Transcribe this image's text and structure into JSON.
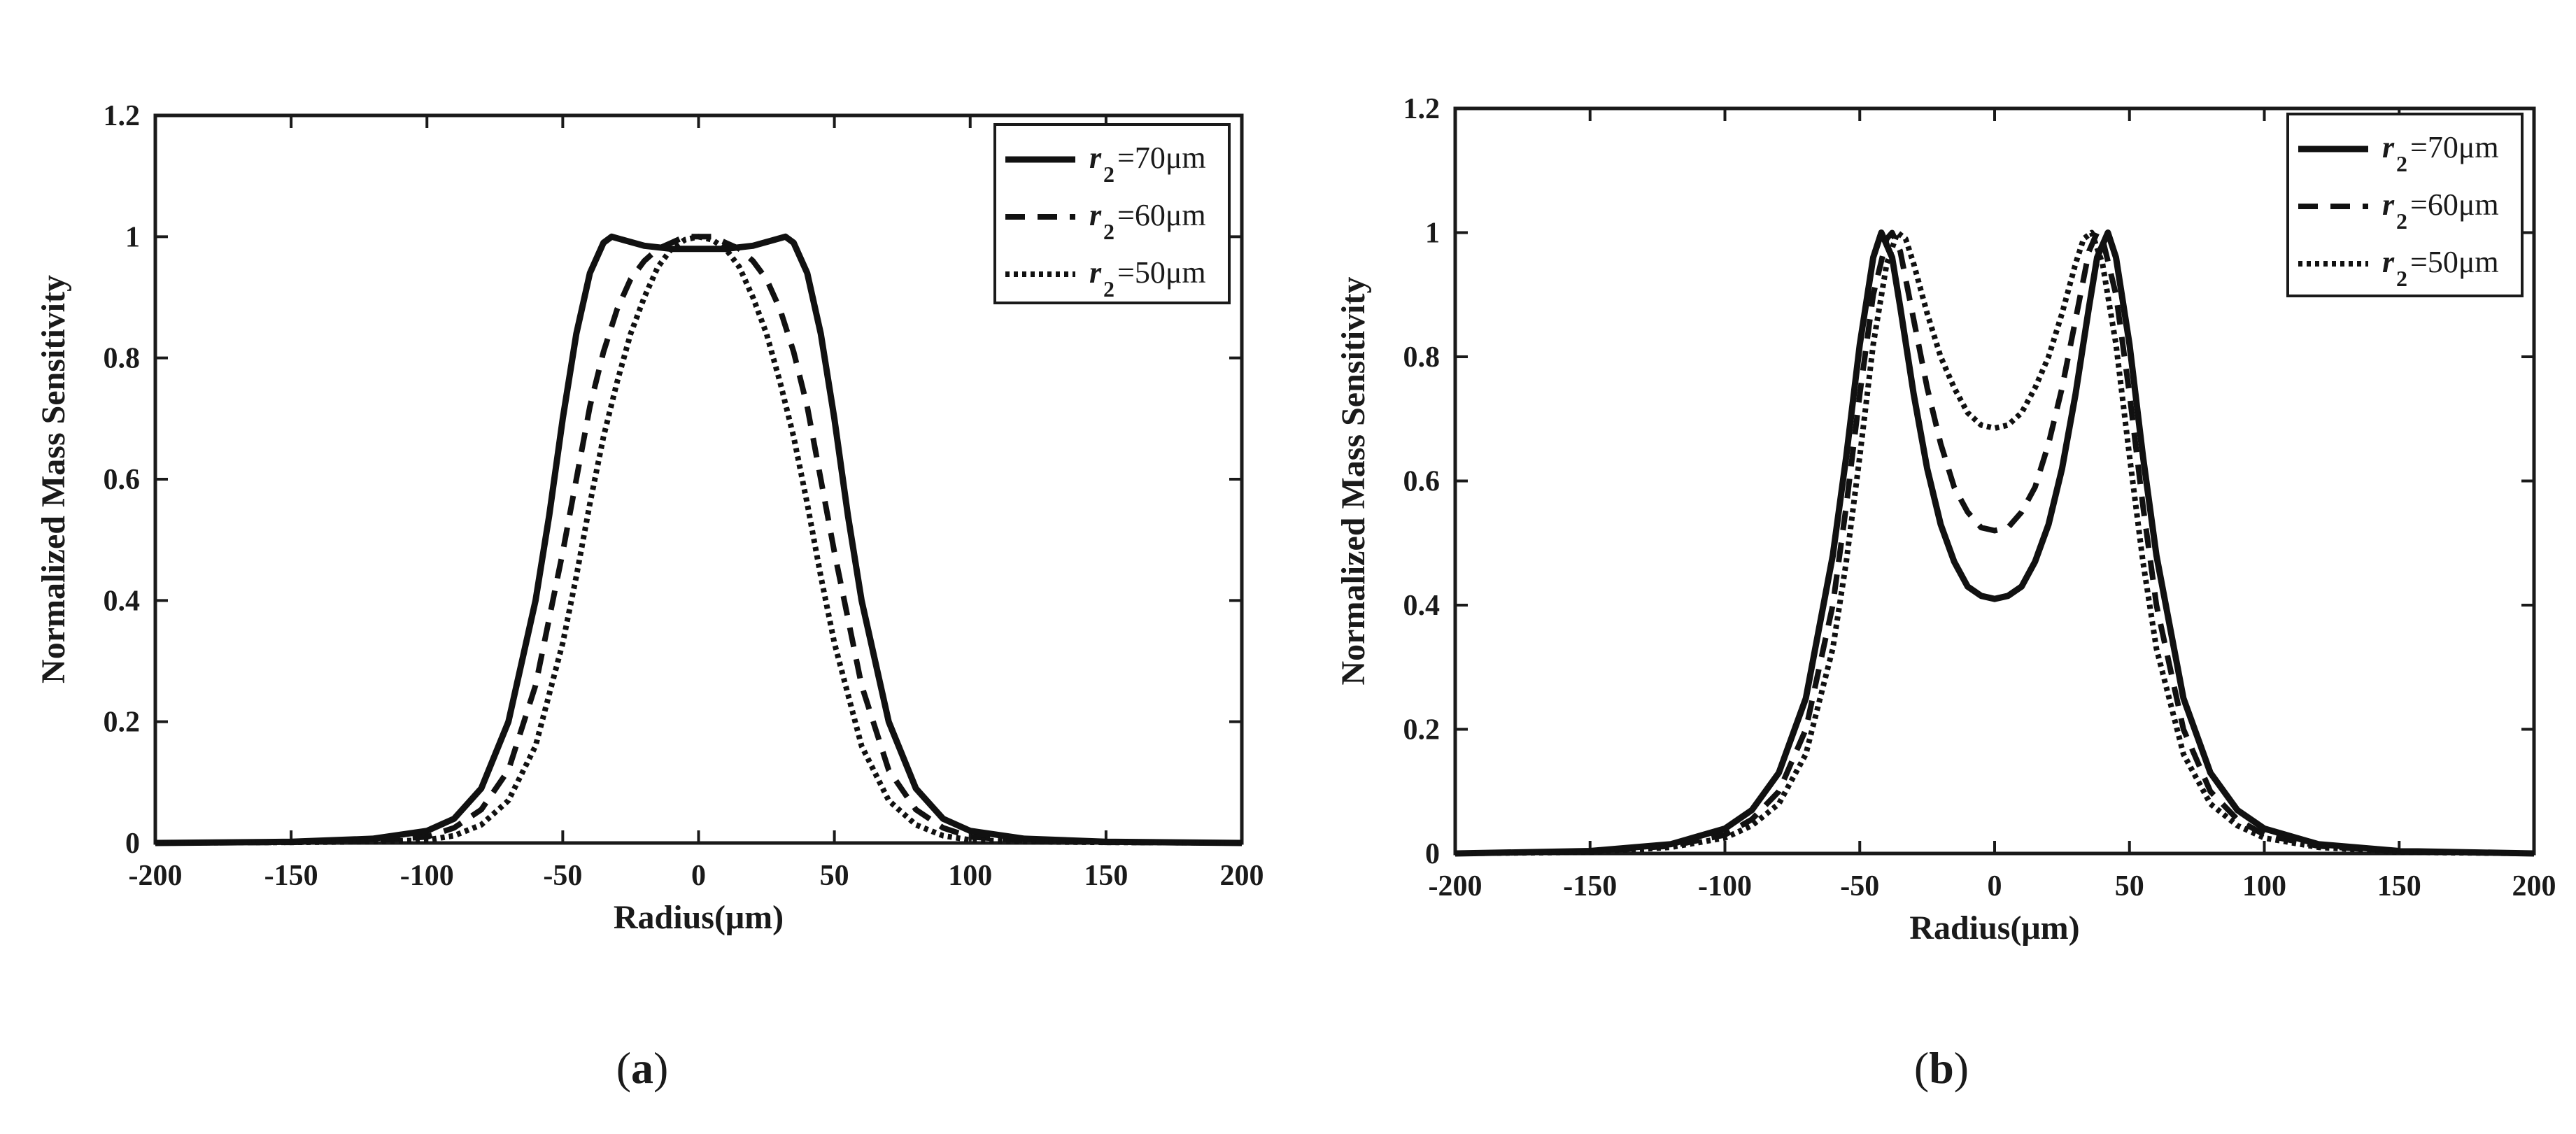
{
  "chart_data": [
    {
      "type": "line",
      "panel_label": "a",
      "xlabel": "Radius(μm)",
      "ylabel": "Normalized Mass Sensitivity",
      "xlim": [
        -200,
        200
      ],
      "ylim": [
        0,
        1.2
      ],
      "x_ticks": [
        "-200",
        "-150",
        "-100",
        "-50",
        "0",
        "50",
        "100",
        "150",
        "200"
      ],
      "y_ticks": [
        "0",
        "0.2",
        "0.4",
        "0.6",
        "0.8",
        "1",
        "1.2"
      ],
      "legend_position": "top-right",
      "series": [
        {
          "name": "r2=70μm",
          "symbol": "r",
          "subscript": "2",
          "value_text": "=70μm",
          "dash": "solid",
          "x": [
            -200,
            -150,
            -120,
            -100,
            -90,
            -80,
            -70,
            -60,
            -55,
            -50,
            -45,
            -40,
            -35,
            -32,
            -28,
            -20,
            -10,
            0,
            10,
            20,
            28,
            32,
            35,
            40,
            45,
            50,
            55,
            60,
            70,
            80,
            90,
            100,
            120,
            150,
            200
          ],
          "y": [
            0,
            0.002,
            0.007,
            0.02,
            0.04,
            0.09,
            0.2,
            0.4,
            0.54,
            0.7,
            0.84,
            0.94,
            0.99,
            1.0,
            0.995,
            0.985,
            0.98,
            0.98,
            0.98,
            0.985,
            0.995,
            1.0,
            0.99,
            0.94,
            0.84,
            0.7,
            0.54,
            0.4,
            0.2,
            0.09,
            0.04,
            0.02,
            0.007,
            0.002,
            0
          ]
        },
        {
          "name": "r2=60μm",
          "symbol": "r",
          "subscript": "2",
          "value_text": "=60μm",
          "dash": "dashed",
          "x": [
            -200,
            -150,
            -120,
            -100,
            -90,
            -80,
            -70,
            -60,
            -50,
            -45,
            -40,
            -35,
            -30,
            -25,
            -20,
            -15,
            -10,
            -5,
            0,
            5,
            10,
            15,
            20,
            25,
            30,
            35,
            40,
            45,
            50,
            60,
            70,
            80,
            90,
            100,
            120,
            150,
            200
          ],
          "y": [
            0,
            0.001,
            0.004,
            0.01,
            0.025,
            0.055,
            0.12,
            0.26,
            0.48,
            0.6,
            0.72,
            0.81,
            0.88,
            0.93,
            0.96,
            0.98,
            0.99,
            1.0,
            1.0,
            1.0,
            0.99,
            0.98,
            0.96,
            0.93,
            0.88,
            0.81,
            0.72,
            0.6,
            0.48,
            0.26,
            0.12,
            0.055,
            0.025,
            0.01,
            0.004,
            0.001,
            0
          ]
        },
        {
          "name": "r2=50μm",
          "symbol": "r",
          "subscript": "2",
          "value_text": "=50μm",
          "dash": "dotted",
          "x": [
            -200,
            -150,
            -120,
            -100,
            -90,
            -80,
            -70,
            -60,
            -50,
            -45,
            -40,
            -35,
            -30,
            -25,
            -20,
            -15,
            -10,
            -5,
            0,
            5,
            10,
            15,
            20,
            25,
            30,
            35,
            40,
            45,
            50,
            60,
            70,
            80,
            90,
            100,
            120,
            150,
            200
          ],
          "y": [
            0,
            0.001,
            0.002,
            0.005,
            0.012,
            0.03,
            0.07,
            0.16,
            0.33,
            0.44,
            0.56,
            0.67,
            0.76,
            0.84,
            0.9,
            0.95,
            0.98,
            0.995,
            1.0,
            0.995,
            0.98,
            0.95,
            0.9,
            0.84,
            0.76,
            0.67,
            0.56,
            0.44,
            0.33,
            0.16,
            0.07,
            0.03,
            0.012,
            0.005,
            0.002,
            0.001,
            0
          ]
        }
      ]
    },
    {
      "type": "line",
      "panel_label": "b",
      "xlabel": "Radius(μm)",
      "ylabel": "Normalized Mass Sensitivity",
      "xlim": [
        -200,
        200
      ],
      "ylim": [
        0,
        1.2
      ],
      "x_ticks": [
        "-200",
        "-150",
        "-100",
        "-50",
        "0",
        "50",
        "100",
        "150",
        "200"
      ],
      "y_ticks": [
        "0",
        "0.2",
        "0.4",
        "0.6",
        "0.8",
        "1",
        "1.2"
      ],
      "legend_position": "top-right",
      "series": [
        {
          "name": "r2=70μm",
          "symbol": "r",
          "subscript": "2",
          "value_text": "=70μm",
          "dash": "solid",
          "x": [
            -200,
            -150,
            -120,
            -100,
            -90,
            -80,
            -70,
            -60,
            -55,
            -50,
            -45,
            -42,
            -38,
            -35,
            -30,
            -25,
            -20,
            -15,
            -10,
            -5,
            0,
            5,
            10,
            15,
            20,
            25,
            30,
            35,
            38,
            42,
            45,
            50,
            55,
            60,
            70,
            80,
            90,
            100,
            120,
            150,
            200
          ],
          "y": [
            0,
            0.004,
            0.015,
            0.04,
            0.07,
            0.13,
            0.25,
            0.48,
            0.64,
            0.82,
            0.96,
            1.0,
            0.96,
            0.88,
            0.74,
            0.62,
            0.53,
            0.47,
            0.43,
            0.415,
            0.41,
            0.415,
            0.43,
            0.47,
            0.53,
            0.62,
            0.74,
            0.88,
            0.96,
            1.0,
            0.96,
            0.82,
            0.64,
            0.48,
            0.25,
            0.13,
            0.07,
            0.04,
            0.015,
            0.004,
            0
          ]
        },
        {
          "name": "r2=60μm",
          "symbol": "r",
          "subscript": "2",
          "value_text": "=60μm",
          "dash": "dashed",
          "x": [
            -200,
            -150,
            -120,
            -100,
            -90,
            -80,
            -70,
            -60,
            -55,
            -50,
            -45,
            -40,
            -38,
            -35,
            -30,
            -25,
            -20,
            -15,
            -10,
            -5,
            0,
            5,
            10,
            15,
            20,
            25,
            30,
            35,
            38,
            40,
            45,
            50,
            55,
            60,
            70,
            80,
            90,
            100,
            120,
            150,
            200
          ],
          "y": [
            0,
            0.003,
            0.012,
            0.03,
            0.055,
            0.1,
            0.2,
            0.4,
            0.56,
            0.74,
            0.9,
            0.99,
            1.0,
            0.97,
            0.86,
            0.75,
            0.66,
            0.59,
            0.55,
            0.525,
            0.52,
            0.525,
            0.55,
            0.59,
            0.66,
            0.75,
            0.86,
            0.97,
            1.0,
            0.99,
            0.9,
            0.74,
            0.56,
            0.4,
            0.2,
            0.1,
            0.055,
            0.03,
            0.012,
            0.003,
            0
          ]
        },
        {
          "name": "r2=50μm",
          "symbol": "r",
          "subscript": "2",
          "value_text": "=50μm",
          "dash": "dotted",
          "x": [
            -200,
            -150,
            -120,
            -100,
            -90,
            -80,
            -70,
            -60,
            -55,
            -50,
            -45,
            -40,
            -36,
            -33,
            -30,
            -25,
            -20,
            -15,
            -10,
            -5,
            0,
            5,
            10,
            15,
            20,
            25,
            30,
            33,
            36,
            40,
            45,
            50,
            55,
            60,
            70,
            80,
            90,
            100,
            120,
            150,
            200
          ],
          "y": [
            0,
            0.002,
            0.01,
            0.025,
            0.045,
            0.08,
            0.16,
            0.33,
            0.47,
            0.64,
            0.82,
            0.95,
            1.0,
            0.99,
            0.95,
            0.87,
            0.8,
            0.75,
            0.71,
            0.69,
            0.685,
            0.69,
            0.71,
            0.75,
            0.8,
            0.87,
            0.95,
            0.99,
            1.0,
            0.95,
            0.82,
            0.64,
            0.47,
            0.33,
            0.16,
            0.08,
            0.045,
            0.025,
            0.01,
            0.002,
            0
          ]
        }
      ]
    }
  ]
}
